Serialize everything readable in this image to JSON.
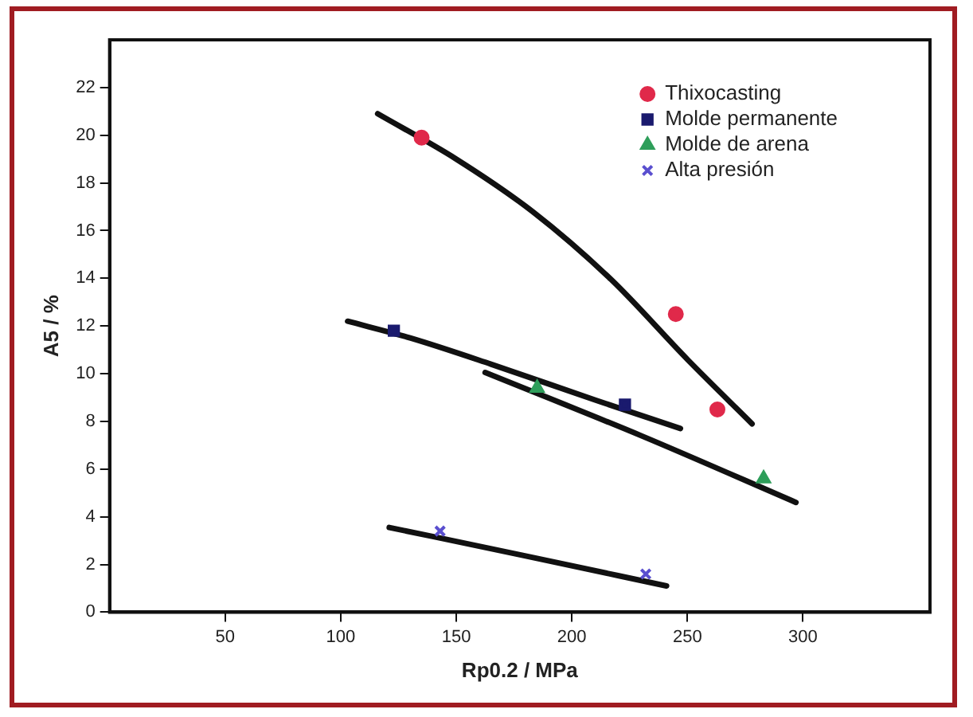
{
  "chart_data": {
    "type": "scatter",
    "xlabel": "Rp0.2 / MPa",
    "ylabel": "A5 / %",
    "xlim": [
      0,
      355
    ],
    "xticks": [
      50,
      100,
      150,
      200,
      250,
      300
    ],
    "ylim": [
      0,
      24
    ],
    "yticks": [
      0,
      2,
      4,
      6,
      8,
      10,
      12,
      14,
      16,
      18,
      20,
      22
    ],
    "grid": false,
    "legend": "top right",
    "series": [
      {
        "name": "Thixocasting",
        "color": "#e0294a",
        "marker": "circle",
        "x": [
          135,
          245,
          263
        ],
        "values": [
          19.9,
          12.5,
          8.5
        ]
      },
      {
        "name": "Molde permanente",
        "color": "#1a1a6e",
        "marker": "square",
        "x": [
          123,
          223
        ],
        "values": [
          11.8,
          8.7
        ]
      },
      {
        "name": "Molde de arena",
        "color": "#2e9e5a",
        "marker": "triangle",
        "x": [
          185,
          283
        ],
        "values": [
          9.4,
          5.6
        ]
      },
      {
        "name": "Alta presión",
        "color": "#5a4fcf",
        "marker": "cross",
        "x": [
          143,
          232
        ],
        "values": [
          3.4,
          1.6
        ]
      },
      {
        "type": "line",
        "color": "#111111",
        "marker": "none",
        "x": [
          116,
          150,
          183,
          217,
          250,
          278
        ],
        "values": [
          20.9,
          19.0,
          16.8,
          13.95,
          10.6,
          7.9
        ]
      },
      {
        "type": "line",
        "color": "#111111",
        "marker": "none",
        "x": [
          103,
          130,
          165,
          210,
          247
        ],
        "values": [
          12.2,
          11.5,
          10.4,
          8.9,
          7.7
        ]
      },
      {
        "type": "line",
        "color": "#111111",
        "marker": "none",
        "x": [
          162.5,
          230,
          297
        ],
        "values": [
          10.05,
          7.4,
          4.6
        ]
      },
      {
        "type": "line",
        "color": "#111111",
        "marker": "none",
        "x": [
          121,
          178,
          241
        ],
        "values": [
          3.55,
          2.4,
          1.1
        ]
      }
    ]
  }
}
